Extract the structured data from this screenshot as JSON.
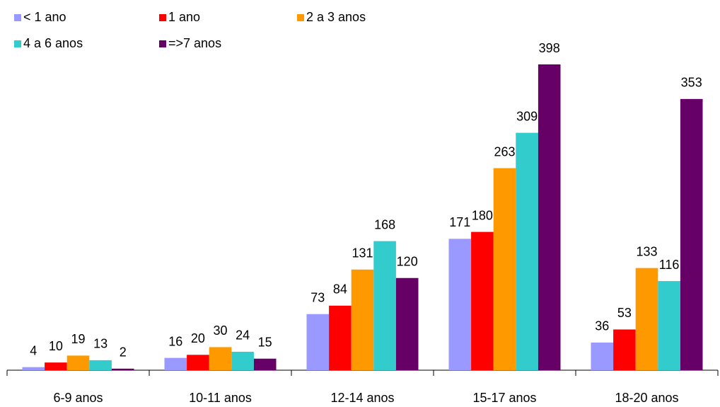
{
  "chart_data": {
    "type": "bar",
    "categories": [
      "6-9 anos",
      "10-11 anos",
      "12-14 anos",
      "15-17 anos",
      "18-20 anos"
    ],
    "series": [
      {
        "name": "< 1 ano",
        "color": "#9999ff",
        "values": [
          4,
          16,
          73,
          171,
          36
        ]
      },
      {
        "name": "1 ano",
        "color": "#ff0000",
        "values": [
          10,
          20,
          84,
          180,
          53
        ]
      },
      {
        "name": "2 a 3 anos",
        "color": "#ff9900",
        "values": [
          19,
          30,
          131,
          263,
          133
        ]
      },
      {
        "name": "4 a 6 anos",
        "color": "#33cccc",
        "values": [
          13,
          24,
          168,
          309,
          116
        ]
      },
      {
        "name": "=>7 anos",
        "color": "#660066",
        "values": [
          2,
          15,
          120,
          398,
          353
        ]
      }
    ],
    "grid": false
  }
}
